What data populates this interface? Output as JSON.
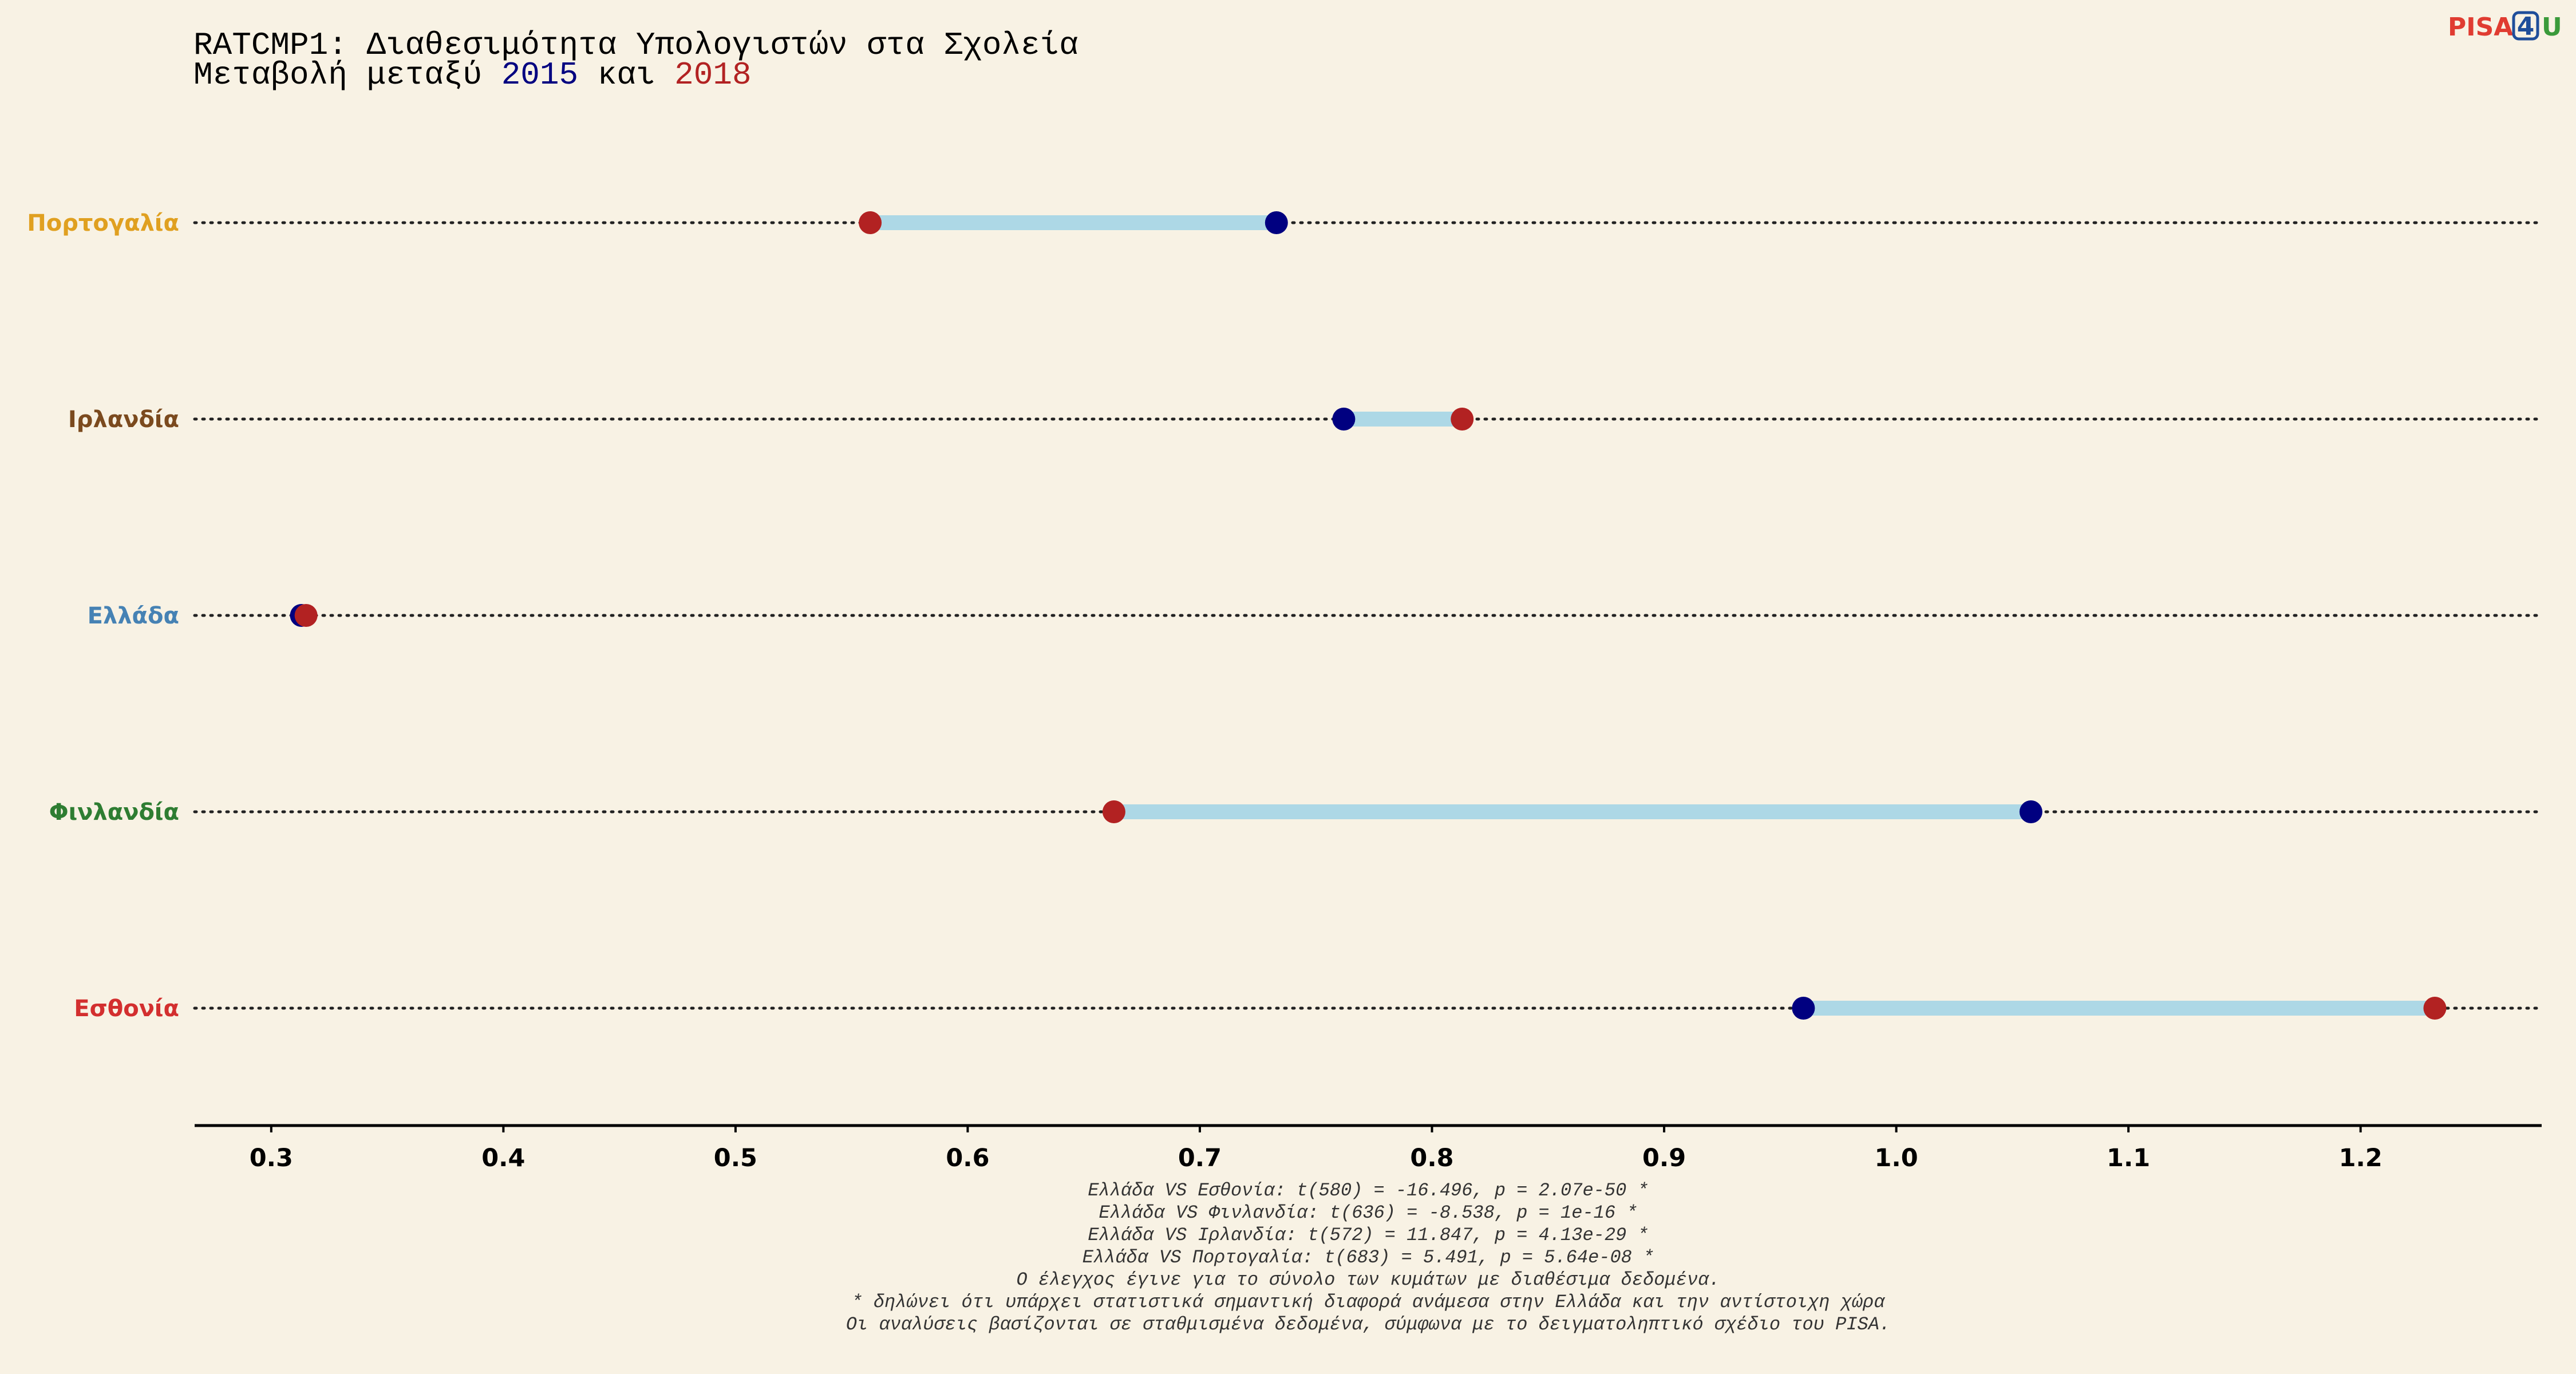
{
  "title": {
    "line1": "RATCMP1: Διαθεσιμότητα Υπολογιστών στα Σχολεία",
    "line2_prefix": "Μεταβολή μεταξύ ",
    "year1": "2015",
    "line2_mid": " και ",
    "year2": "2018"
  },
  "logo": {
    "part1": "PISA",
    "part2": "4",
    "part3": "U"
  },
  "colors": {
    "background": "#f8f2e4",
    "year1": "#000080",
    "year2": "#b22222",
    "segment": "#add8e6",
    "logo_red": "#e03c31",
    "logo_blue": "#1f4e9a",
    "logo_green": "#3a9a3a"
  },
  "chart_data": {
    "type": "dumbbell",
    "xlim": [
      0.267,
      1.278
    ],
    "xticks": [
      "0.3",
      "0.4",
      "0.5",
      "0.6",
      "0.7",
      "0.8",
      "0.9",
      "1.0",
      "1.1",
      "1.2"
    ],
    "series": [
      {
        "name": "2015",
        "color": "#000080"
      },
      {
        "name": "2018",
        "color": "#b22222"
      }
    ],
    "rows": [
      {
        "country": "Πορτογαλία",
        "color": "#e0a020",
        "v2015": 0.733,
        "v2018": 0.558
      },
      {
        "country": "Ιρλανδία",
        "color": "#7b4a1e",
        "v2015": 0.762,
        "v2018": 0.813
      },
      {
        "country": "Ελλάδα",
        "color": "#4682b4",
        "v2015": 0.313,
        "v2018": 0.315
      },
      {
        "country": "Φινλανδία",
        "color": "#2e7d32",
        "v2015": 1.058,
        "v2018": 0.663
      },
      {
        "country": "Εσθονία",
        "color": "#d32f2f",
        "v2015": 0.96,
        "v2018": 1.232
      }
    ]
  },
  "footnotes": [
    "Ελλάδα VS Εσθονία: t(580) = -16.496, p = 2.07e-50 *",
    "Ελλάδα VS Φινλανδία: t(636) = -8.538, p = 1e-16 *",
    "Ελλάδα VS Ιρλανδία: t(572) = 11.847, p = 4.13e-29 *",
    "Ελλάδα VS Πορτογαλία: t(683) = 5.491, p = 5.64e-08 *",
    "Ο έλεγχος έγινε για το σύνολο των κυμάτων με διαθέσιμα δεδομένα.",
    "* δηλώνει ότι υπάρχει στατιστικά σημαντική διαφορά ανάμεσα στην Ελλάδα και την αντίστοιχη χώρα",
    "Οι αναλύσεις βασίζονται σε σταθμισμένα δεδομένα, σύμφωνα με το δειγματοληπτικό σχέδιο του PISA."
  ]
}
